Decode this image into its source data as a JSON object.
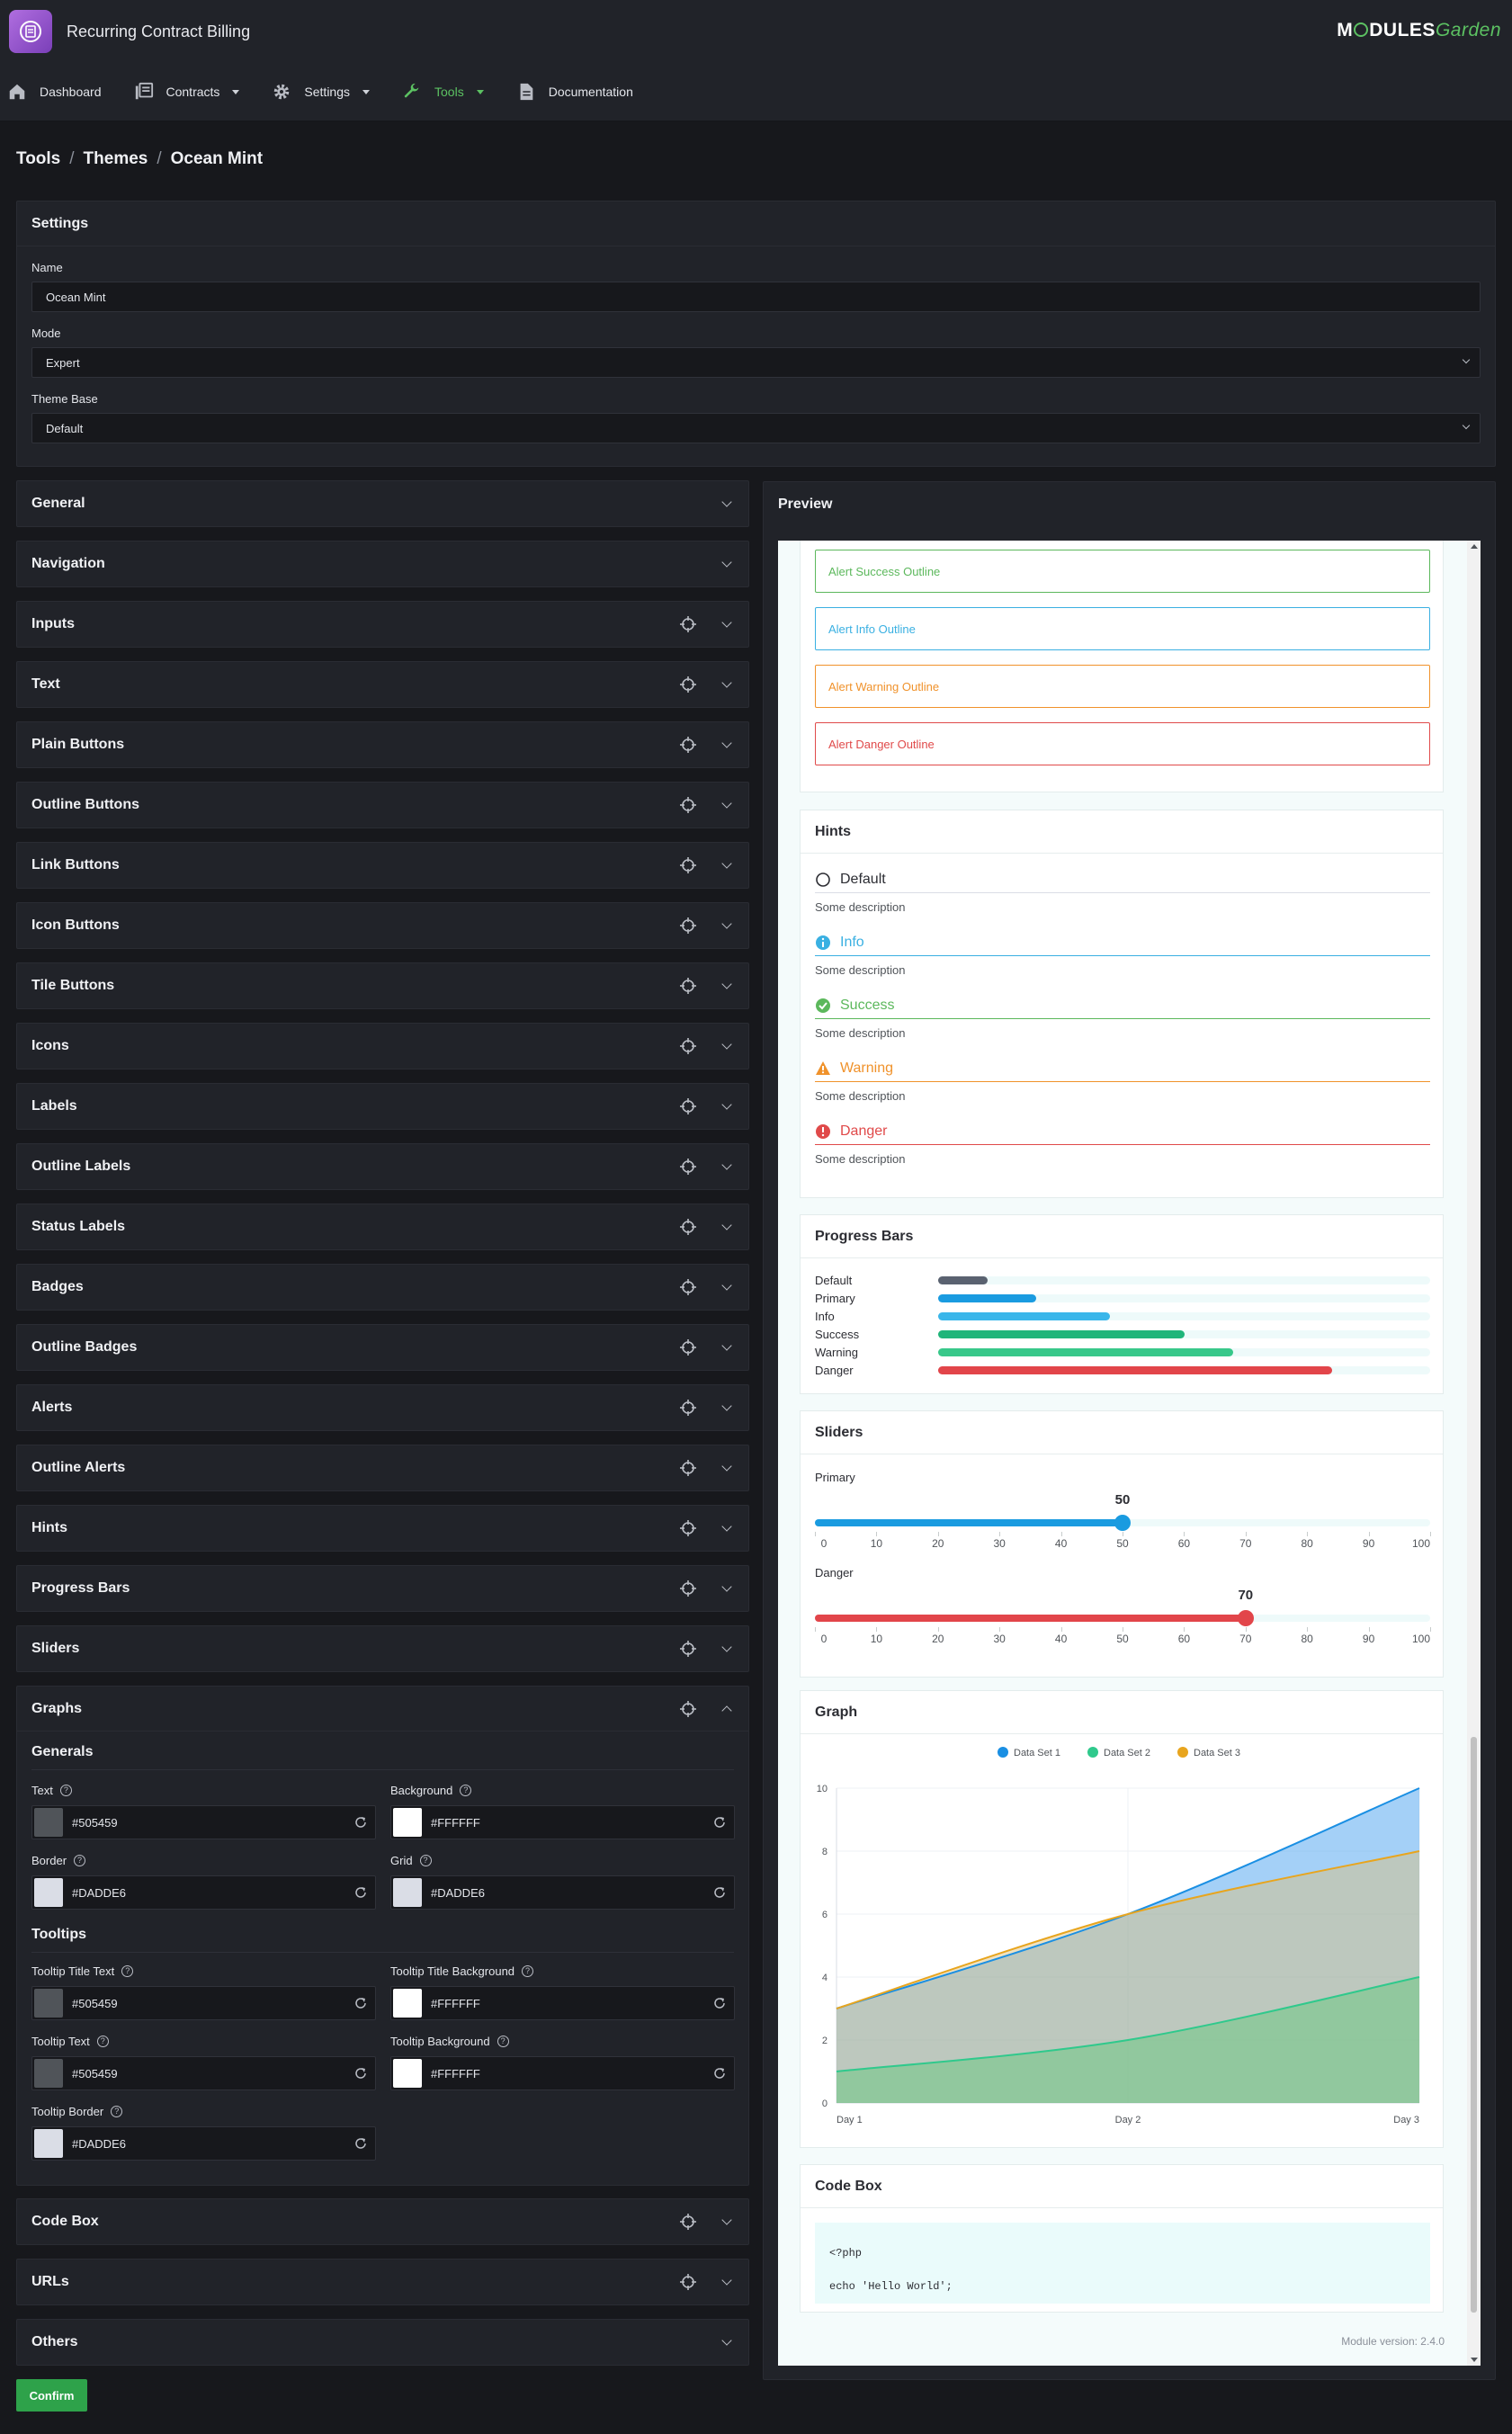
{
  "app": {
    "title": "Recurring Contract Billing",
    "brand_logo_text": "MODULESGarden"
  },
  "nav": [
    {
      "label": "Dashboard",
      "icon": "home-icon"
    },
    {
      "label": "Contracts",
      "icon": "contracts-icon"
    },
    {
      "label": "Settings",
      "icon": "gear-icon"
    },
    {
      "label": "Tools",
      "icon": "wrench-icon"
    },
    {
      "label": "Documentation",
      "icon": "document-icon"
    }
  ],
  "breadcrumb": [
    "Tools",
    "Themes",
    "Ocean Mint"
  ],
  "settings": {
    "title": "Settings",
    "name_label": "Name",
    "name_value": "Ocean Mint",
    "mode_label": "Mode",
    "mode_value": "Expert",
    "base_label": "Theme Base",
    "base_value": "Default"
  },
  "sections": [
    "General",
    "Navigation",
    "Inputs",
    "Text",
    "Plain Buttons",
    "Outline Buttons",
    "Link Buttons",
    "Icon Buttons",
    "Tile Buttons",
    "Icons",
    "Labels",
    "Outline Labels",
    "Status Labels",
    "Badges",
    "Outline Badges",
    "Alerts",
    "Outline Alerts",
    "Hints",
    "Progress Bars",
    "Sliders"
  ],
  "graphs": {
    "title": "Graphs",
    "generals_title": "Generals",
    "tooltips_title": "Tooltips",
    "fields": [
      {
        "label": "Text",
        "value": "#505459",
        "color": "#505459"
      },
      {
        "label": "Background",
        "value": "#FFFFFF",
        "color": "#FFFFFF"
      },
      {
        "label": "Border",
        "value": "#DADDE6",
        "color": "#DADDE6"
      },
      {
        "label": "Grid",
        "value": "#DADDE6",
        "color": "#DADDE6"
      },
      {
        "label": "Tooltip Title Text",
        "value": "#505459",
        "color": "#505459"
      },
      {
        "label": "Tooltip Title Background",
        "value": "#FFFFFF",
        "color": "#FFFFFF"
      },
      {
        "label": "Tooltip Text",
        "value": "#505459",
        "color": "#505459"
      },
      {
        "label": "Tooltip Background",
        "value": "#FFFFFF",
        "color": "#FFFFFF"
      },
      {
        "label": "Tooltip Border",
        "value": "#DADDE6",
        "color": "#DADDE6"
      }
    ]
  },
  "bottom_sections": [
    "Code Box",
    "URLs",
    "Others"
  ],
  "confirm_label": "Confirm",
  "preview": {
    "title": "Preview",
    "alerts": [
      {
        "label": "Alert Success Outline",
        "color": "#5cb85c"
      },
      {
        "label": "Alert Info Outline",
        "color": "#3ab0e2"
      },
      {
        "label": "Alert Warning Outline",
        "color": "#f0922b"
      },
      {
        "label": "Alert Danger Outline",
        "color": "#e04a4a"
      }
    ],
    "hints_title": "Hints",
    "hints": [
      {
        "label": "Default",
        "desc": "Some description",
        "color": "#2c2d33",
        "line": "#dadde6",
        "icon": "circle-icon"
      },
      {
        "label": "Info",
        "desc": "Some description",
        "color": "#3ab0e2",
        "line": "#3ab0e2",
        "icon": "info-icon"
      },
      {
        "label": "Success",
        "desc": "Some description",
        "color": "#5cb85c",
        "line": "#5cb85c",
        "icon": "check-circle-icon"
      },
      {
        "label": "Warning",
        "desc": "Some description",
        "color": "#f0922b",
        "line": "#f0922b",
        "icon": "warning-icon"
      },
      {
        "label": "Danger",
        "desc": "Some description",
        "color": "#e04a4a",
        "line": "#e04a4a",
        "icon": "exclamation-circle-icon"
      }
    ],
    "progress_title": "Progress Bars",
    "progress": [
      {
        "label": "Default",
        "value": 10,
        "color": "#5a6270"
      },
      {
        "label": "Primary",
        "value": 20,
        "color": "#1a9be0"
      },
      {
        "label": "Info",
        "value": 35,
        "color": "#3ab6ea"
      },
      {
        "label": "Success",
        "value": 50,
        "color": "#20b57a"
      },
      {
        "label": "Warning",
        "value": 60,
        "color": "#38c88a"
      },
      {
        "label": "Danger",
        "value": 80,
        "color": "#e2454a"
      }
    ],
    "sliders_title": "Sliders",
    "sliders": [
      {
        "label": "Primary",
        "value": 50,
        "display": "50",
        "color": "#1a9be0"
      },
      {
        "label": "Danger",
        "value": 70,
        "display": "70",
        "color": "#e2454a"
      }
    ],
    "slider_ticks": [
      "0",
      "10",
      "20",
      "30",
      "40",
      "50",
      "60",
      "70",
      "80",
      "90",
      "100"
    ],
    "graph_title": "Graph",
    "codebox_title": "Code Box",
    "code_lines": [
      "<?php",
      "echo 'Hello World';"
    ],
    "module_version": "Module version: 2.4.0"
  },
  "chart_data": {
    "type": "area",
    "title": "",
    "categories": [
      "Day 1",
      "Day 2",
      "Day 3"
    ],
    "series": [
      {
        "name": "Data Set 1",
        "values": [
          3,
          6,
          10
        ],
        "color": "#1a8fe3"
      },
      {
        "name": "Data Set 2",
        "values": [
          1,
          2,
          4
        ],
        "color": "#2fc98c"
      },
      {
        "name": "Data Set 3",
        "values": [
          3,
          6,
          8
        ],
        "color": "#e8a51e"
      }
    ],
    "ylim": [
      0,
      10
    ],
    "yticks": [
      "0",
      "2",
      "4",
      "6",
      "8",
      "10"
    ],
    "legend": "top"
  }
}
